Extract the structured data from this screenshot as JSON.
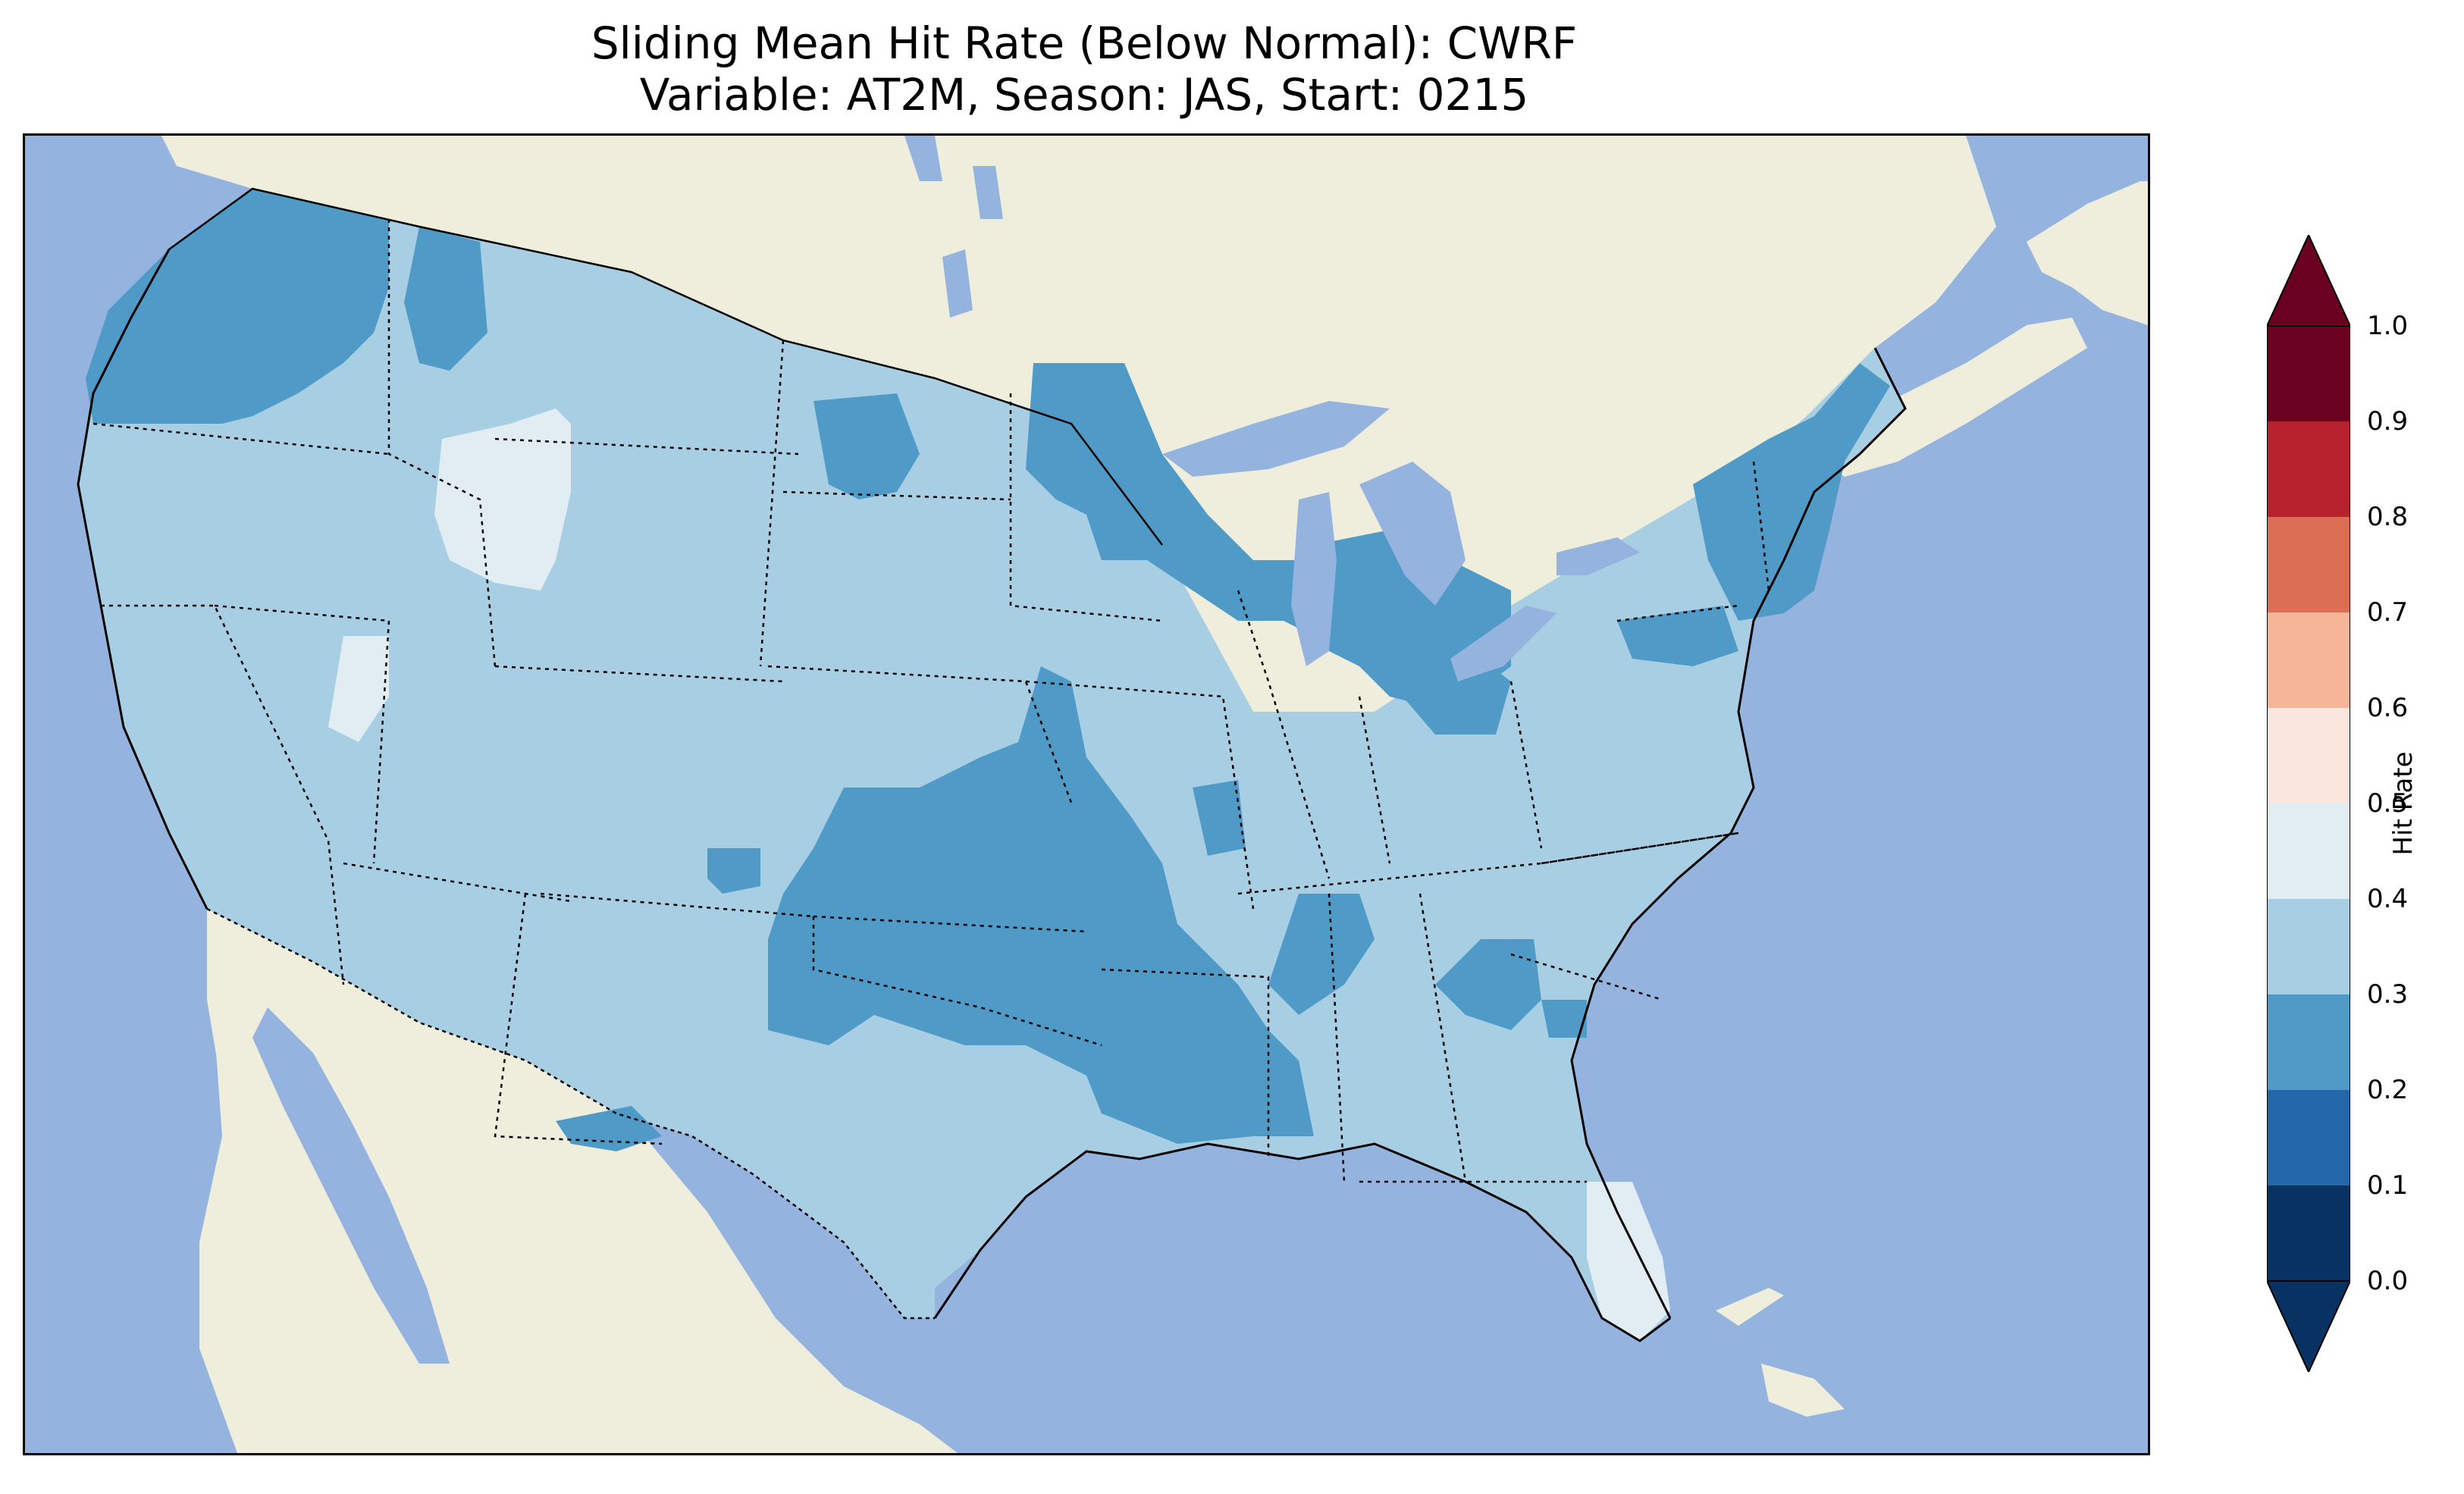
{
  "title": {
    "line1": "Sliding Mean Hit Rate (Below Normal): CWRF",
    "line2": "Variable: AT2M, Season: JAS, Start: 0215"
  },
  "map": {
    "region": "contiguous-united-states",
    "projection": "lambert-conformal",
    "features": [
      "coastlines",
      "state-borders",
      "country-borders",
      "lakes",
      "ocean",
      "land"
    ],
    "colors": {
      "ocean": "#95b3df",
      "land": "#efeedd",
      "lakes": "#95b3df",
      "borders": "#000000"
    },
    "field": {
      "variable": "AT2M",
      "dominant_bins": [
        "0.2-0.3",
        "0.3-0.4",
        "0.4-0.5"
      ]
    }
  },
  "colorbar": {
    "label": "Hit Rate",
    "ticks": [
      "0.0",
      "0.1",
      "0.2",
      "0.3",
      "0.4",
      "0.5",
      "0.6",
      "0.7",
      "0.8",
      "0.9",
      "1.0"
    ],
    "extend": "both",
    "colors": [
      "#083262",
      "#2466aa",
      "#4f9ac6",
      "#a8cee4",
      "#e2edf3",
      "#f9e6dc",
      "#f6b596",
      "#dc6e56",
      "#b6222e",
      "#6b0120"
    ]
  }
}
